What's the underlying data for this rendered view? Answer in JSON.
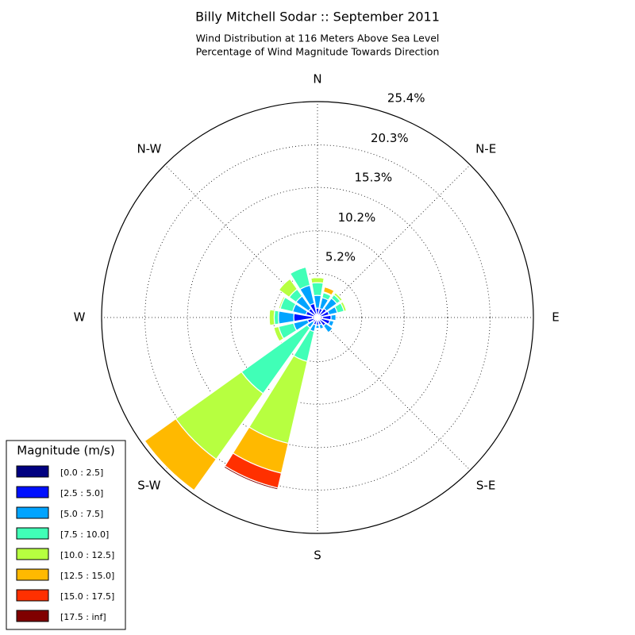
{
  "chart_data": {
    "type": "windrose",
    "title": "Billy Mitchell Sodar :: September 2011",
    "subtitle": [
      "Wind Distribution at 116 Meters Above Sea Level",
      "Percentage of Wind Magnitude Towards Direction"
    ],
    "categories": [
      "N",
      null,
      "N-E",
      null,
      "E",
      null,
      "S-E",
      null,
      "S",
      null,
      "S-W",
      null,
      "W",
      null,
      "N-W",
      null
    ],
    "rlim": [
      0,
      25.4
    ],
    "rticks": [
      {
        "value": 5.2,
        "label": "5.2%"
      },
      {
        "value": 10.2,
        "label": "10.2%"
      },
      {
        "value": 15.3,
        "label": "15.3%"
      },
      {
        "value": 20.3,
        "label": "20.3%"
      },
      {
        "value": 25.4,
        "label": "25.4%"
      }
    ],
    "grid": true,
    "legend": {
      "title": "Magnitude (m/s)",
      "position": "lower left"
    },
    "series": [
      {
        "name": "[0.0 : 2.5]",
        "color": "#000080",
        "values": [
          0.3,
          0.3,
          0.3,
          0.4,
          0.6,
          0.5,
          0.3,
          0.3,
          0.3,
          0.3,
          0.2,
          0.4,
          0.6,
          0.4,
          0.3,
          0.4
        ]
      },
      {
        "name": "[2.5 : 5.0]",
        "color": "#0010ff",
        "values": [
          0.8,
          0.8,
          1.0,
          1.0,
          1.0,
          1.0,
          0.9,
          0.6,
          0.6,
          0.6,
          0.5,
          0.8,
          2.2,
          1.0,
          1.0,
          1.3
        ]
      },
      {
        "name": "[5.0 : 7.5]",
        "color": "#00a4ff",
        "values": [
          1.5,
          1.3,
          1.5,
          1.0,
          0.6,
          0.5,
          1.0,
          0.5,
          0.4,
          0.8,
          0.8,
          1.7,
          1.8,
          1.6,
          1.8,
          2.2
        ]
      },
      {
        "name": "[7.5 : 10.0]",
        "color": "#40ffb7",
        "values": [
          1.5,
          0.6,
          0.5,
          0.8,
          0,
          0,
          0,
          0,
          0,
          3.6,
          9.5,
          1.8,
          0.5,
          1.5,
          1.0,
          2.2
        ]
      },
      {
        "name": "[10.0 : 12.5]",
        "color": "#b7ff40",
        "values": [
          0.6,
          0.1,
          0.3,
          0.3,
          0,
          0,
          0,
          0,
          0,
          9.9,
          9.5,
          0.6,
          0.6,
          0.2,
          1.5,
          0
        ]
      },
      {
        "name": "[12.5 : 15.0]",
        "color": "#ffb900",
        "values": [
          0,
          0.6,
          0,
          0,
          0,
          0,
          0,
          0,
          0,
          3.6,
          4.5,
          0,
          0,
          0,
          0,
          0
        ]
      },
      {
        "name": "[15.0 : 17.5]",
        "color": "#ff3000",
        "values": [
          0,
          0,
          0,
          0,
          0,
          0,
          0,
          0,
          0,
          1.8,
          0,
          0,
          0,
          0,
          0,
          0
        ]
      },
      {
        "name": "[17.5 : inf]",
        "color": "#800000",
        "values": [
          0,
          0,
          0,
          0,
          0,
          0,
          0,
          0,
          0,
          0.2,
          0,
          0,
          0,
          0,
          0,
          0
        ]
      }
    ]
  }
}
